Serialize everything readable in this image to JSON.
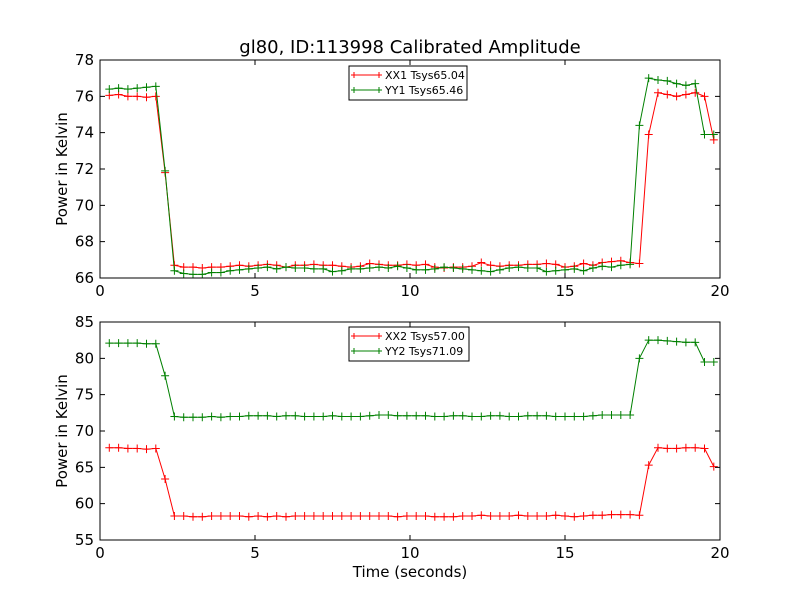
{
  "chart_data": [
    {
      "type": "line",
      "title": "gl80, ID:113998 Calibrated Amplitude",
      "xlabel": "",
      "ylabel": "Power in Kelvin",
      "xlim": [
        0,
        20
      ],
      "ylim": [
        66,
        78
      ],
      "xticks": [
        0,
        5,
        10,
        15,
        20
      ],
      "yticks": [
        66,
        68,
        70,
        72,
        74,
        76,
        78
      ],
      "grid": false,
      "legend_position": "top-center",
      "x": [
        0.3,
        0.6,
        0.9,
        1.2,
        1.5,
        1.8,
        2.1,
        2.4,
        2.7,
        3.0,
        3.3,
        3.6,
        3.9,
        4.2,
        4.5,
        4.8,
        5.1,
        5.4,
        5.7,
        6.0,
        6.3,
        6.6,
        6.9,
        7.2,
        7.5,
        7.8,
        8.1,
        8.4,
        8.7,
        9.0,
        9.3,
        9.6,
        9.9,
        10.2,
        10.5,
        10.8,
        11.1,
        11.4,
        11.7,
        12.0,
        12.3,
        12.6,
        12.9,
        13.2,
        13.5,
        13.8,
        14.1,
        14.4,
        14.7,
        15.0,
        15.3,
        15.6,
        15.9,
        16.2,
        16.5,
        16.8,
        17.1,
        17.4,
        17.7,
        18.0,
        18.3,
        18.6,
        18.9,
        19.2,
        19.5,
        19.8
      ],
      "series": [
        {
          "name": "XX1 Tsys65.04",
          "color": "#ff0000",
          "values": [
            76.05,
            76.1,
            76.0,
            76.0,
            75.95,
            76.0,
            71.8,
            66.7,
            66.6,
            66.6,
            66.55,
            66.6,
            66.6,
            66.65,
            66.7,
            66.65,
            66.7,
            66.75,
            66.7,
            66.6,
            66.7,
            66.7,
            66.75,
            66.7,
            66.7,
            66.65,
            66.6,
            66.65,
            66.8,
            66.75,
            66.7,
            66.7,
            66.75,
            66.7,
            66.75,
            66.6,
            66.55,
            66.6,
            66.6,
            66.65,
            66.85,
            66.7,
            66.65,
            66.7,
            66.7,
            66.75,
            66.75,
            66.8,
            66.75,
            66.6,
            66.65,
            66.8,
            66.7,
            66.85,
            66.9,
            66.95,
            66.85,
            66.8,
            73.9,
            76.2,
            76.1,
            76.0,
            76.1,
            76.2,
            76.0,
            73.6
          ]
        },
        {
          "name": "YY1 Tsys65.46",
          "color": "#008000",
          "values": [
            76.4,
            76.45,
            76.4,
            76.45,
            76.5,
            76.55,
            71.9,
            66.4,
            66.25,
            66.2,
            66.2,
            66.3,
            66.3,
            66.4,
            66.45,
            66.5,
            66.55,
            66.6,
            66.5,
            66.6,
            66.55,
            66.55,
            66.5,
            66.5,
            66.35,
            66.4,
            66.5,
            66.5,
            66.55,
            66.6,
            66.55,
            66.65,
            66.55,
            66.45,
            66.45,
            66.5,
            66.6,
            66.55,
            66.5,
            66.45,
            66.4,
            66.35,
            66.45,
            66.55,
            66.6,
            66.55,
            66.55,
            66.35,
            66.4,
            66.45,
            66.5,
            66.4,
            66.55,
            66.65,
            66.6,
            66.7,
            66.75,
            74.4,
            77.0,
            76.9,
            76.85,
            76.7,
            76.6,
            76.7,
            73.9,
            73.9
          ]
        }
      ]
    },
    {
      "type": "line",
      "title": "",
      "xlabel": "Time (seconds)",
      "ylabel": "Power in Kelvin",
      "xlim": [
        0,
        20
      ],
      "ylim": [
        55,
        85
      ],
      "xticks": [
        0,
        5,
        10,
        15,
        20
      ],
      "yticks": [
        55,
        60,
        65,
        70,
        75,
        80,
        85
      ],
      "grid": false,
      "legend_position": "top-center",
      "x": [
        0.3,
        0.6,
        0.9,
        1.2,
        1.5,
        1.8,
        2.1,
        2.4,
        2.7,
        3.0,
        3.3,
        3.6,
        3.9,
        4.2,
        4.5,
        4.8,
        5.1,
        5.4,
        5.7,
        6.0,
        6.3,
        6.6,
        6.9,
        7.2,
        7.5,
        7.8,
        8.1,
        8.4,
        8.7,
        9.0,
        9.3,
        9.6,
        9.9,
        10.2,
        10.5,
        10.8,
        11.1,
        11.4,
        11.7,
        12.0,
        12.3,
        12.6,
        12.9,
        13.2,
        13.5,
        13.8,
        14.1,
        14.4,
        14.7,
        15.0,
        15.3,
        15.6,
        15.9,
        16.2,
        16.5,
        16.8,
        17.1,
        17.4,
        17.7,
        18.0,
        18.3,
        18.6,
        18.9,
        19.2,
        19.5,
        19.8
      ],
      "series": [
        {
          "name": "XX2 Tsys57.00",
          "color": "#ff0000",
          "values": [
            67.7,
            67.7,
            67.6,
            67.6,
            67.5,
            67.6,
            63.4,
            58.3,
            58.3,
            58.2,
            58.2,
            58.3,
            58.3,
            58.3,
            58.3,
            58.2,
            58.3,
            58.2,
            58.3,
            58.2,
            58.3,
            58.3,
            58.3,
            58.3,
            58.3,
            58.3,
            58.3,
            58.3,
            58.3,
            58.3,
            58.3,
            58.2,
            58.3,
            58.3,
            58.3,
            58.2,
            58.2,
            58.2,
            58.3,
            58.3,
            58.4,
            58.3,
            58.3,
            58.3,
            58.4,
            58.3,
            58.3,
            58.3,
            58.4,
            58.3,
            58.2,
            58.3,
            58.4,
            58.4,
            58.5,
            58.5,
            58.5,
            58.4,
            65.3,
            67.7,
            67.6,
            67.6,
            67.7,
            67.7,
            67.6,
            65.1
          ]
        },
        {
          "name": "YY2 Tsys71.09",
          "color": "#008000",
          "values": [
            82.1,
            82.1,
            82.1,
            82.1,
            82.0,
            82.0,
            77.6,
            72.0,
            71.9,
            71.9,
            71.9,
            72.0,
            71.9,
            72.0,
            72.0,
            72.1,
            72.1,
            72.1,
            72.0,
            72.1,
            72.1,
            72.0,
            72.0,
            72.0,
            72.1,
            72.0,
            72.0,
            72.0,
            72.1,
            72.2,
            72.2,
            72.1,
            72.1,
            72.1,
            72.1,
            72.0,
            72.0,
            72.1,
            72.1,
            72.0,
            72.0,
            72.1,
            72.1,
            72.0,
            72.0,
            72.1,
            72.1,
            72.1,
            72.0,
            72.0,
            72.0,
            72.0,
            72.1,
            72.2,
            72.2,
            72.2,
            72.2,
            80.0,
            82.5,
            82.5,
            82.4,
            82.3,
            82.2,
            82.2,
            79.5,
            79.5
          ]
        }
      ]
    }
  ]
}
